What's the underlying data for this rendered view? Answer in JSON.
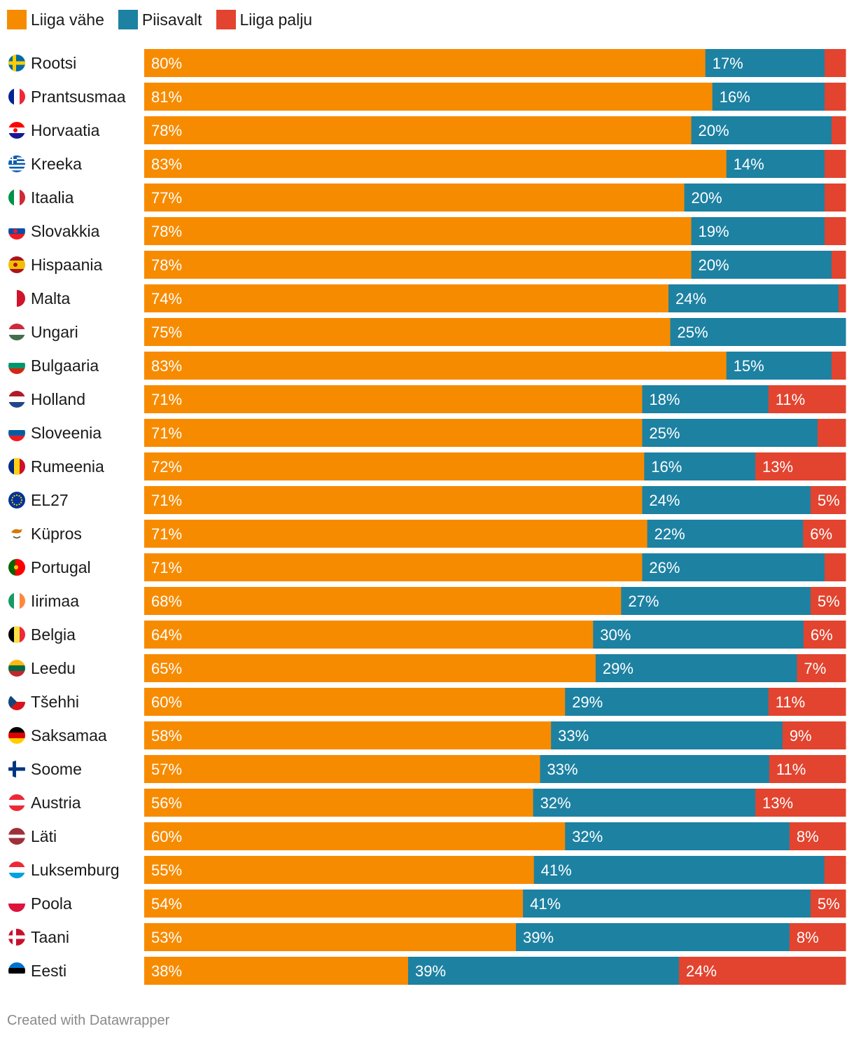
{
  "legend": [
    {
      "label": "Liiga vähe",
      "color": "#f78b00"
    },
    {
      "label": "Piisavalt",
      "color": "#1d81a2"
    },
    {
      "label": "Liiga palju",
      "color": "#e2442f"
    }
  ],
  "footer": "Created with Datawrapper",
  "chart_data": {
    "type": "bar",
    "orientation": "horizontal",
    "stacked": true,
    "xlim": [
      0,
      100
    ],
    "series": [
      {
        "name": "Liiga vähe",
        "color": "#f78b00"
      },
      {
        "name": "Piisavalt",
        "color": "#1d81a2"
      },
      {
        "name": "Liiga palju",
        "color": "#e2442f"
      }
    ],
    "rows": [
      {
        "label": "Rootsi",
        "flag": "sweden-flag-icon",
        "values": [
          80,
          17,
          3
        ],
        "labels": [
          "80%",
          "17%",
          ""
        ]
      },
      {
        "label": "Prantsusmaa",
        "flag": "france-flag-icon",
        "values": [
          81,
          16,
          3
        ],
        "labels": [
          "81%",
          "16%",
          ""
        ]
      },
      {
        "label": "Horvaatia",
        "flag": "croatia-flag-icon",
        "values": [
          78,
          20,
          2
        ],
        "labels": [
          "78%",
          "20%",
          ""
        ]
      },
      {
        "label": "Kreeka",
        "flag": "greece-flag-icon",
        "values": [
          83,
          14,
          3
        ],
        "labels": [
          "83%",
          "14%",
          ""
        ]
      },
      {
        "label": "Itaalia",
        "flag": "italy-flag-icon",
        "values": [
          77,
          20,
          3
        ],
        "labels": [
          "77%",
          "20%",
          ""
        ]
      },
      {
        "label": "Slovakkia",
        "flag": "slovakia-flag-icon",
        "values": [
          78,
          19,
          3
        ],
        "labels": [
          "78%",
          "19%",
          ""
        ]
      },
      {
        "label": "Hispaania",
        "flag": "spain-flag-icon",
        "values": [
          78,
          20,
          2
        ],
        "labels": [
          "78%",
          "20%",
          ""
        ]
      },
      {
        "label": "Malta",
        "flag": "malta-flag-icon",
        "values": [
          74,
          24,
          1
        ],
        "labels": [
          "74%",
          "24%",
          ""
        ]
      },
      {
        "label": "Ungari",
        "flag": "hungary-flag-icon",
        "values": [
          75,
          25,
          0
        ],
        "labels": [
          "75%",
          "25%",
          ""
        ]
      },
      {
        "label": "Bulgaaria",
        "flag": "bulgaria-flag-icon",
        "values": [
          83,
          15,
          2
        ],
        "labels": [
          "83%",
          "15%",
          ""
        ]
      },
      {
        "label": "Holland",
        "flag": "netherlands-flag-icon",
        "values": [
          71,
          18,
          11
        ],
        "labels": [
          "71%",
          "18%",
          "11%"
        ]
      },
      {
        "label": "Sloveenia",
        "flag": "slovenia-flag-icon",
        "values": [
          71,
          25,
          4
        ],
        "labels": [
          "71%",
          "25%",
          ""
        ]
      },
      {
        "label": "Rumeenia",
        "flag": "romania-flag-icon",
        "values": [
          72,
          16,
          13
        ],
        "labels": [
          "72%",
          "16%",
          "13%"
        ]
      },
      {
        "label": "EL27",
        "flag": "eu-flag-icon",
        "values": [
          71,
          24,
          5
        ],
        "labels": [
          "71%",
          "24%",
          "5%"
        ]
      },
      {
        "label": "Küpros",
        "flag": "cyprus-flag-icon",
        "values": [
          71,
          22,
          6
        ],
        "labels": [
          "71%",
          "22%",
          "6%"
        ]
      },
      {
        "label": "Portugal",
        "flag": "portugal-flag-icon",
        "values": [
          71,
          26,
          3
        ],
        "labels": [
          "71%",
          "26%",
          ""
        ]
      },
      {
        "label": "Iirimaa",
        "flag": "ireland-flag-icon",
        "values": [
          68,
          27,
          5
        ],
        "labels": [
          "68%",
          "27%",
          "5%"
        ]
      },
      {
        "label": "Belgia",
        "flag": "belgium-flag-icon",
        "values": [
          64,
          30,
          6
        ],
        "labels": [
          "64%",
          "30%",
          "6%"
        ]
      },
      {
        "label": "Leedu",
        "flag": "lithuania-flag-icon",
        "values": [
          65,
          29,
          7
        ],
        "labels": [
          "65%",
          "29%",
          "7%"
        ]
      },
      {
        "label": "Tšehhi",
        "flag": "czechia-flag-icon",
        "values": [
          60,
          29,
          11
        ],
        "labels": [
          "60%",
          "29%",
          "11%"
        ]
      },
      {
        "label": "Saksamaa",
        "flag": "germany-flag-icon",
        "values": [
          58,
          33,
          9
        ],
        "labels": [
          "58%",
          "33%",
          "9%"
        ]
      },
      {
        "label": "Soome",
        "flag": "finland-flag-icon",
        "values": [
          57,
          33,
          11
        ],
        "labels": [
          "57%",
          "33%",
          "11%"
        ]
      },
      {
        "label": "Austria",
        "flag": "austria-flag-icon",
        "values": [
          56,
          32,
          13
        ],
        "labels": [
          "56%",
          "32%",
          "13%"
        ]
      },
      {
        "label": "Läti",
        "flag": "latvia-flag-icon",
        "values": [
          60,
          32,
          8
        ],
        "labels": [
          "60%",
          "32%",
          "8%"
        ]
      },
      {
        "label": "Luksemburg",
        "flag": "luxembourg-flag-icon",
        "values": [
          55,
          41,
          3
        ],
        "labels": [
          "55%",
          "41%",
          ""
        ]
      },
      {
        "label": "Poola",
        "flag": "poland-flag-icon",
        "values": [
          54,
          41,
          5
        ],
        "labels": [
          "54%",
          "41%",
          "5%"
        ]
      },
      {
        "label": "Taani",
        "flag": "denmark-flag-icon",
        "values": [
          53,
          39,
          8
        ],
        "labels": [
          "53%",
          "39%",
          "8%"
        ]
      },
      {
        "label": "Eesti",
        "flag": "estonia-flag-icon",
        "values": [
          38,
          39,
          24
        ],
        "labels": [
          "38%",
          "39%",
          "24%"
        ]
      }
    ]
  }
}
